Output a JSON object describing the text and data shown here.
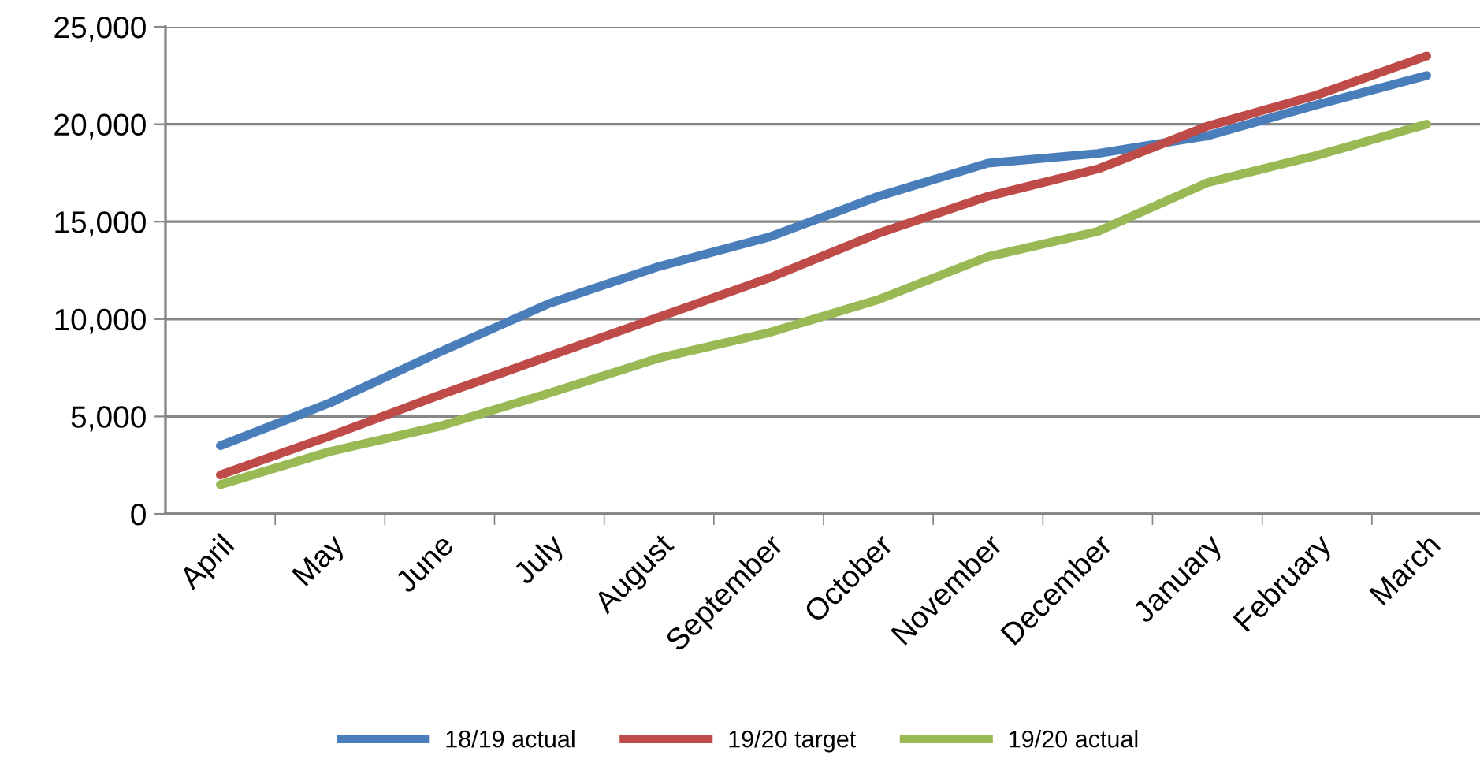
{
  "chart_data": {
    "type": "line",
    "categories": [
      "April",
      "May",
      "June",
      "July",
      "August",
      "September",
      "October",
      "November",
      "December",
      "January",
      "February",
      "March"
    ],
    "series": [
      {
        "name": "18/19 actual",
        "color": "#4a7ebb",
        "values": [
          3500,
          5700,
          8300,
          10800,
          12700,
          14200,
          16300,
          18000,
          18500,
          19400,
          21000,
          22500
        ]
      },
      {
        "name": "19/20 target",
        "color": "#be4b48",
        "values": [
          2000,
          4000,
          6100,
          8100,
          10100,
          12100,
          14400,
          16300,
          17700,
          19900,
          21500,
          23500
        ]
      },
      {
        "name": "19/20 actual",
        "color": "#98b954",
        "values": [
          1500,
          3200,
          4500,
          6200,
          8000,
          9300,
          11000,
          13200,
          14500,
          17000,
          18400,
          20000
        ]
      }
    ],
    "ylim": [
      0,
      25000
    ],
    "yticks": [
      {
        "value": 0,
        "label": "0"
      },
      {
        "value": 5000,
        "label": "5,000"
      },
      {
        "value": 10000,
        "label": "10,000"
      },
      {
        "value": 15000,
        "label": "15,000"
      },
      {
        "value": 20000,
        "label": "20,000"
      },
      {
        "value": 25000,
        "label": "25,000"
      }
    ],
    "grid": "y",
    "legend": "bottom",
    "marker": "none",
    "line_style": "solid"
  }
}
